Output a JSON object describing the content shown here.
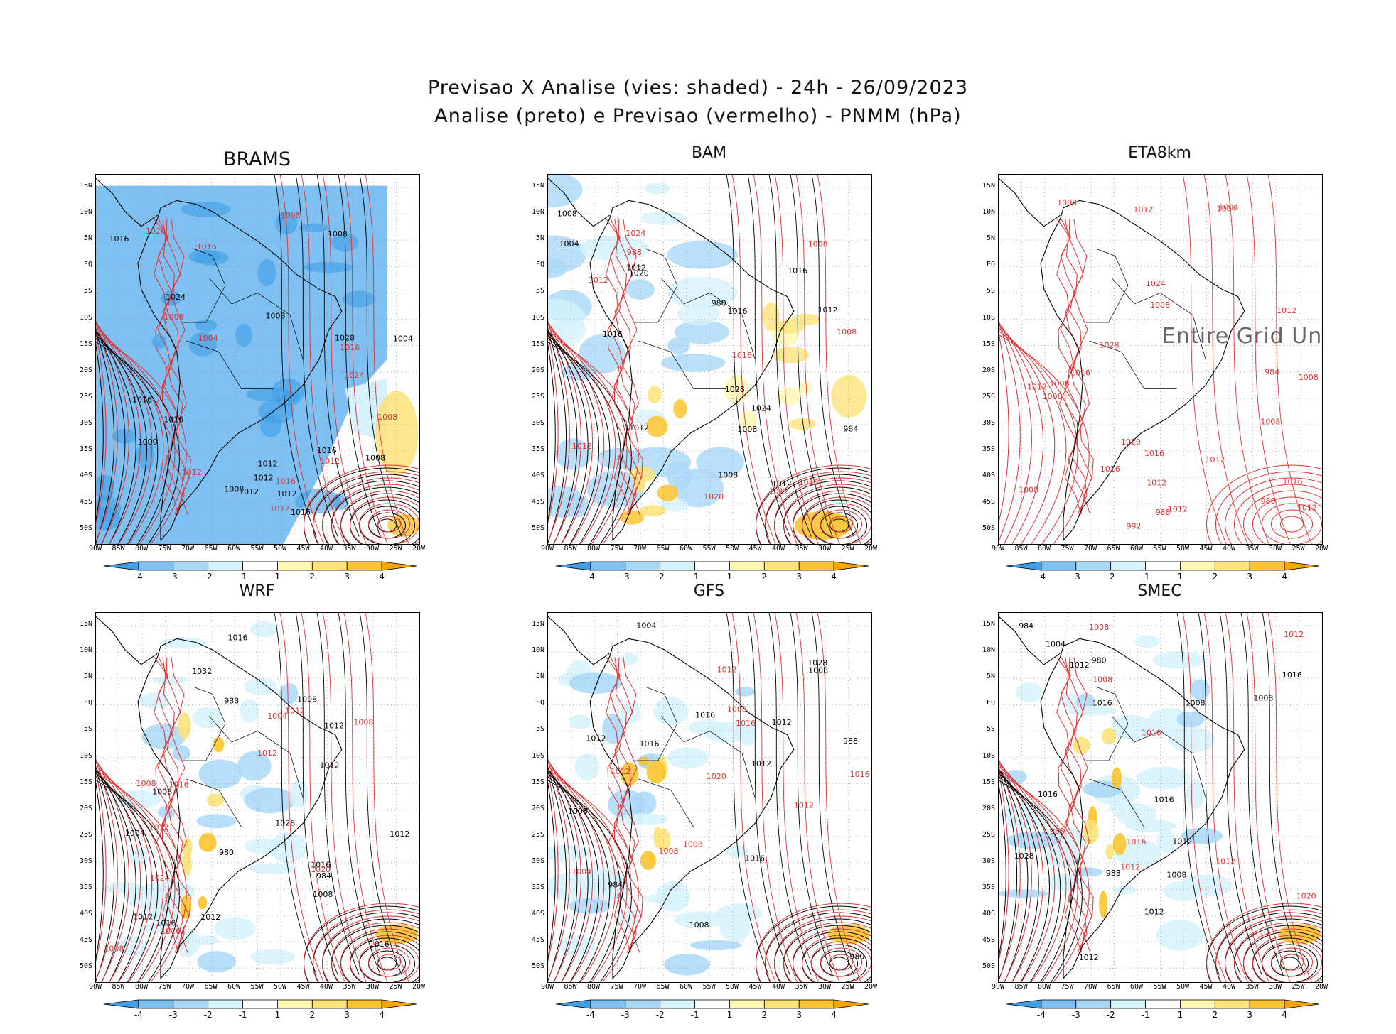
{
  "title": {
    "line1": "Previsao X Analise (vies: shaded) - 24h - 26/09/2023",
    "line2": "Analise (preto) e Previsao (vermelho) - PNMM (hPa)"
  },
  "lat_labels": [
    "15N",
    "10N",
    "5N",
    "EQ",
    "5S",
    "10S",
    "15S",
    "20S",
    "25S",
    "30S",
    "35S",
    "40S",
    "45S",
    "50S"
  ],
  "lon_labels": [
    "90W",
    "85W",
    "80W",
    "75W",
    "70W",
    "65W",
    "60W",
    "55W",
    "50W",
    "45W",
    "40W",
    "35W",
    "30W",
    "25W",
    "20W"
  ],
  "colorbar": {
    "labels": [
      "-4",
      "-3",
      "-2",
      "-1",
      "1",
      "2",
      "3",
      "4"
    ],
    "colors": [
      "#3f9fe6",
      "#7ec0f2",
      "#a9d8f7",
      "#d6f2fc",
      "#ffffff",
      "#fff7b0",
      "#fde37a",
      "#fbc430",
      "#f7a300"
    ]
  },
  "colors": {
    "analysis": "#000000",
    "forecast": "#e03030"
  },
  "panels": [
    {
      "name": "BRAMS",
      "undefined_msg": "",
      "bias": "neg-strong",
      "black_labels": [
        "1008",
        "1012",
        "1008",
        "1016",
        "1004",
        "1000",
        "1012",
        "1016",
        "1028",
        "1024",
        "1016",
        "1008",
        "1012",
        "1016",
        "1008",
        "1012",
        "1016"
      ],
      "red_labels": [
        "1012",
        "1008",
        "1016",
        "1020",
        "1024",
        "1008",
        "1004",
        "1016",
        "1012",
        "1008",
        "1012",
        "1016"
      ]
    },
    {
      "name": "BAM",
      "undefined_msg": "",
      "bias": "mixed",
      "black_labels": [
        "1012",
        "1008",
        "1012",
        "1016",
        "1004",
        "1008",
        "1012",
        "1016",
        "1020",
        "1028",
        "1024",
        "1016",
        "1012",
        "984",
        "1008",
        "980"
      ],
      "red_labels": [
        "1012",
        "1008",
        "1016",
        "1024",
        "1020",
        "1012",
        "1008",
        "1016",
        "1012",
        "988"
      ]
    },
    {
      "name": "ETA8km",
      "undefined_msg": "Entire Grid Undefined",
      "bias": "none",
      "black_labels": [],
      "red_labels": [
        "1012",
        "1008",
        "1012",
        "1008",
        "1008",
        "1012",
        "1008",
        "1012",
        "1004",
        "1016",
        "1008",
        "1012",
        "1016",
        "1028",
        "1024",
        "1016",
        "1020",
        "1008",
        "1004",
        "1012",
        "1008",
        "992",
        "988",
        "984",
        "980",
        "1016",
        "1012"
      ]
    },
    {
      "name": "WRF",
      "undefined_msg": "",
      "bias": "neg-light",
      "black_labels": [
        "1016",
        "1012",
        "1012",
        "1008",
        "1004",
        "1016",
        "1012",
        "1008",
        "1016",
        "1032",
        "1028",
        "1016",
        "1012",
        "1008",
        "1012",
        "988",
        "984",
        "980"
      ],
      "red_labels": [
        "1012",
        "1008",
        "1016",
        "1020",
        "1024",
        "1012",
        "1008",
        "1016",
        "1012",
        "1008",
        "1004"
      ]
    },
    {
      "name": "GFS",
      "undefined_msg": "",
      "bias": "neg-light",
      "black_labels": [
        "1012",
        "1008",
        "1016",
        "1004",
        "1012",
        "1008",
        "1016",
        "1028",
        "1016",
        "1012",
        "1008",
        "988",
        "984",
        "980"
      ],
      "red_labels": [
        "1012",
        "1008",
        "1004",
        "1016",
        "1020",
        "1012",
        "1008",
        "1016",
        "1012",
        "1008"
      ]
    },
    {
      "name": "SMEC",
      "undefined_msg": "",
      "bias": "neg-light",
      "black_labels": [
        "1012",
        "1016",
        "1012",
        "1008",
        "1004",
        "1016",
        "1012",
        "1008",
        "1016",
        "1028",
        "1016",
        "1012",
        "1008",
        "988",
        "984",
        "980"
      ],
      "red_labels": [
        "1012",
        "1008",
        "1016",
        "1020",
        "1012",
        "1008",
        "1016",
        "1012",
        "1008",
        "988"
      ]
    }
  ]
}
